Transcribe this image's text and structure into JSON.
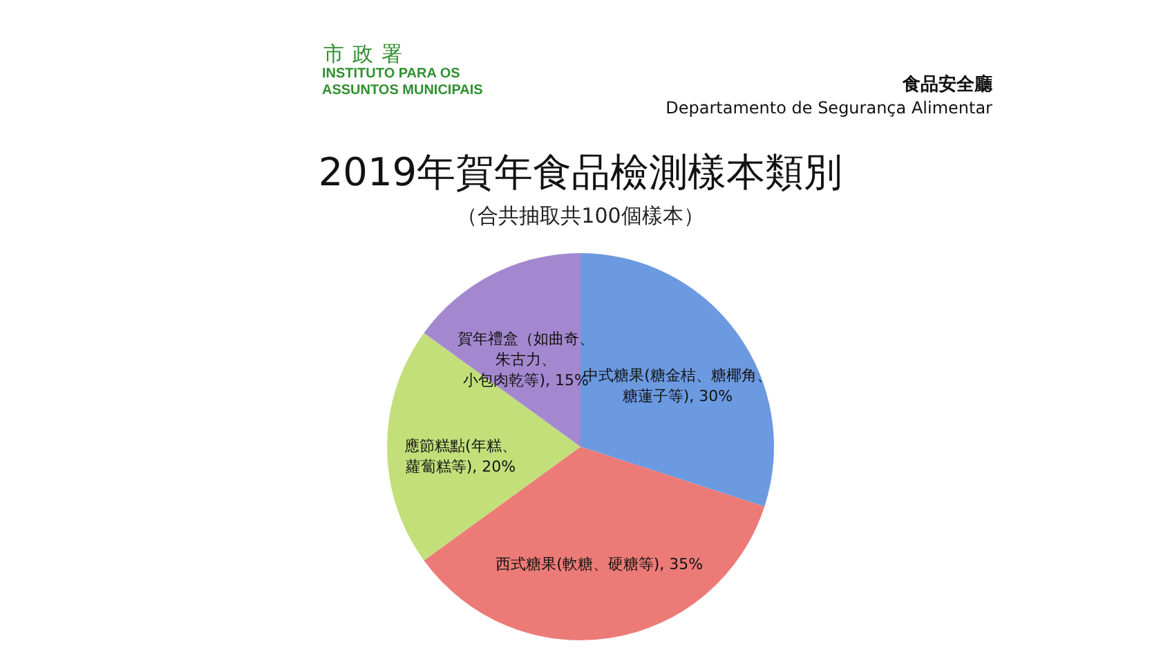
{
  "chart_data": {
    "type": "pie",
    "title": "2019年賀年食品檢測樣本類別",
    "subtitle": "（合共抽取共100個樣本）",
    "categories": [
      "中式糖果(糖金桔、糖椰角、糖蓮子等)",
      "西式糖果(軟糖、硬糖等)",
      "應節糕點(年糕、蘿蔔糕等)",
      "賀年禮盒（如曲奇、朱古力、小包肉乾等)"
    ],
    "values": [
      30,
      35,
      20,
      15
    ],
    "colors": [
      "#6c9ae0",
      "#ec7b78",
      "#c2df7a",
      "#a488cf"
    ],
    "value_labels": [
      "30%",
      "35%",
      "20%",
      "15%"
    ],
    "annotations": [
      "市政署",
      "INSTITUTO PARA OS ASSUNTOS MUNICIPAIS",
      "食品安全廳",
      "Departamento de Segurança Alimentar"
    ]
  }
}
